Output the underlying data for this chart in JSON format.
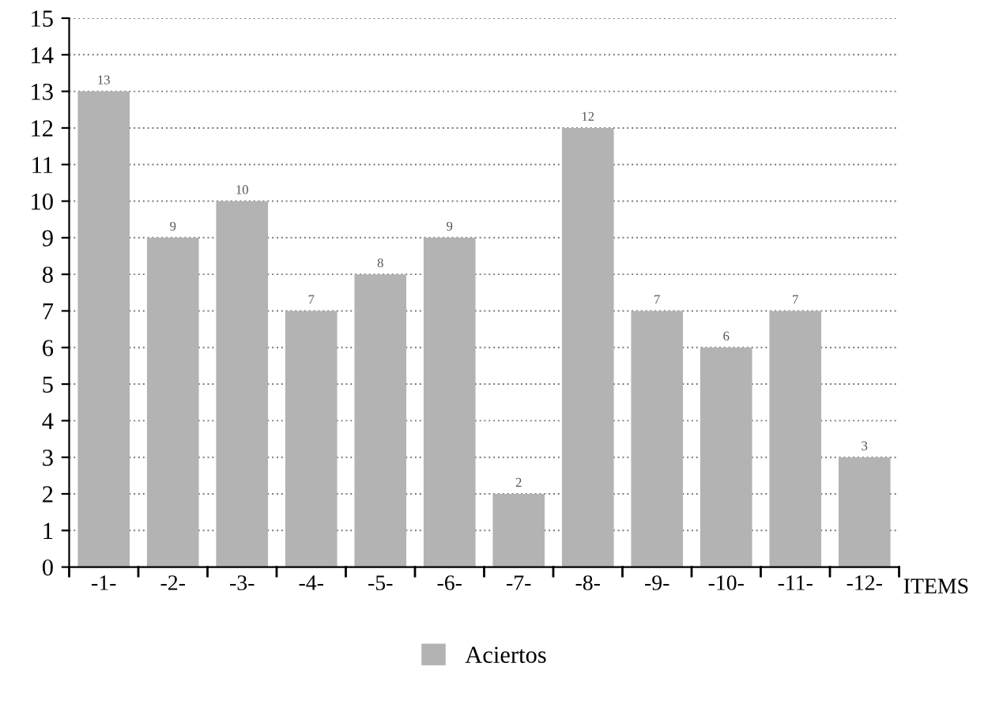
{
  "chart_data": {
    "type": "bar",
    "xlabel": "ITEMS",
    "categories": [
      "-1-",
      "-2-",
      "-3-",
      "-4-",
      "-5-",
      "-6-",
      "-7-",
      "-8-",
      "-9-",
      "-10-",
      "-11-",
      "-12-"
    ],
    "series": [
      {
        "name": "Aciertos",
        "color": "#b3b3b3",
        "values": [
          13,
          9,
          10,
          7,
          8,
          9,
          2,
          12,
          7,
          6,
          7,
          3
        ]
      }
    ],
    "ylim": [
      0,
      15
    ],
    "yticks": [
      0,
      1,
      2,
      3,
      4,
      5,
      6,
      7,
      8,
      9,
      10,
      11,
      12,
      13,
      14,
      15
    ],
    "grid": "y",
    "legend": "bottom",
    "data_labels": true
  }
}
